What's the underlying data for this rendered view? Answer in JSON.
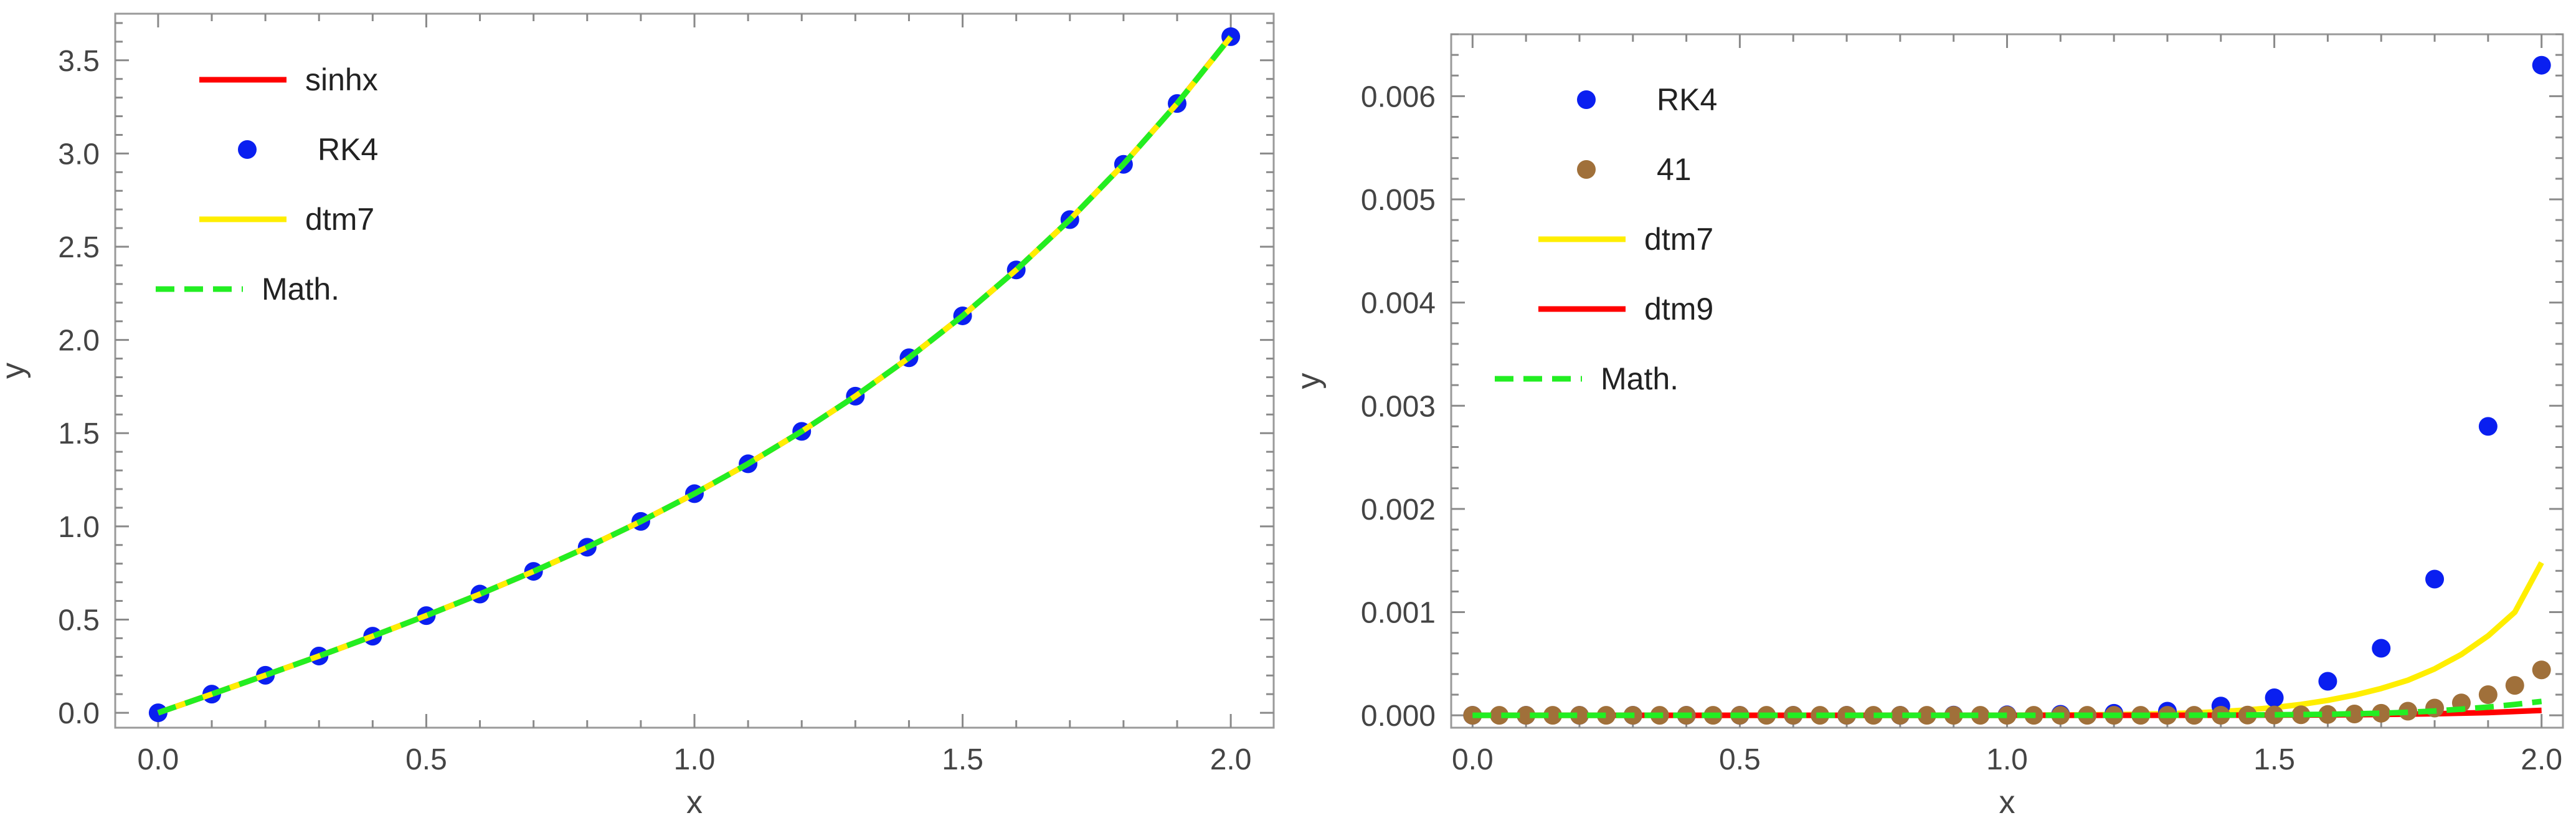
{
  "chart_data": [
    {
      "type": "line",
      "xlabel": "x",
      "ylabel": "y",
      "xlim": [
        -0.08,
        2.08
      ],
      "ylim": [
        -0.08,
        3.75
      ],
      "xticks": [
        "0.0",
        "0.5",
        "1.0",
        "1.5",
        "2.0"
      ],
      "xtick_values": [
        0,
        0.5,
        1,
        1.5,
        2
      ],
      "yticks": [
        "0.0",
        "0.5",
        "1.0",
        "1.5",
        "2.0",
        "2.5",
        "3.0",
        "3.5"
      ],
      "ytick_values": [
        0,
        0.5,
        1,
        1.5,
        2,
        2.5,
        3,
        3.5
      ],
      "grid": false,
      "legend_position": "top-left",
      "series": [
        {
          "name": "sinhx",
          "style": "line",
          "color": "#ff0000",
          "x": [
            0,
            0.1,
            0.2,
            0.3,
            0.4,
            0.5,
            0.6,
            0.7,
            0.8,
            0.9,
            1.0,
            1.1,
            1.2,
            1.3,
            1.4,
            1.5,
            1.6,
            1.7,
            1.8,
            1.9,
            2.0
          ],
          "values": [
            0,
            0.1002,
            0.2013,
            0.3045,
            0.4108,
            0.5211,
            0.6367,
            0.7586,
            0.8881,
            1.0265,
            1.1752,
            1.3356,
            1.5095,
            1.6984,
            1.9043,
            2.1293,
            2.3756,
            2.6456,
            2.9422,
            3.2682,
            3.6269
          ]
        },
        {
          "name": "RK4",
          "style": "points",
          "color": "#0a1ff0",
          "x": [
            0,
            0.1,
            0.2,
            0.3,
            0.4,
            0.5,
            0.6,
            0.7,
            0.8,
            0.9,
            1.0,
            1.1,
            1.2,
            1.3,
            1.4,
            1.5,
            1.6,
            1.7,
            1.8,
            1.9,
            2.0
          ],
          "values": [
            0,
            0.1002,
            0.2013,
            0.3045,
            0.4108,
            0.5211,
            0.6367,
            0.7586,
            0.8881,
            1.0265,
            1.1752,
            1.3356,
            1.5095,
            1.6984,
            1.9043,
            2.1293,
            2.3756,
            2.6456,
            2.9422,
            3.2682,
            3.6269
          ]
        },
        {
          "name": "dtm7",
          "style": "line",
          "color": "#ffee00",
          "x": [
            0,
            0.1,
            0.2,
            0.3,
            0.4,
            0.5,
            0.6,
            0.7,
            0.8,
            0.9,
            1.0,
            1.1,
            1.2,
            1.3,
            1.4,
            1.5,
            1.6,
            1.7,
            1.8,
            1.9,
            2.0
          ],
          "values": [
            0,
            0.1002,
            0.2013,
            0.3045,
            0.4108,
            0.5211,
            0.6367,
            0.7586,
            0.8881,
            1.0265,
            1.1752,
            1.3356,
            1.5095,
            1.6984,
            1.9043,
            2.1293,
            2.3756,
            2.6456,
            2.9422,
            3.2682,
            3.6254
          ]
        },
        {
          "name": "Math.",
          "style": "dashed",
          "color": "#22ee22",
          "x": [
            0,
            0.1,
            0.2,
            0.3,
            0.4,
            0.5,
            0.6,
            0.7,
            0.8,
            0.9,
            1.0,
            1.1,
            1.2,
            1.3,
            1.4,
            1.5,
            1.6,
            1.7,
            1.8,
            1.9,
            2.0
          ],
          "values": [
            0,
            0.1002,
            0.2013,
            0.3045,
            0.4108,
            0.5211,
            0.6367,
            0.7586,
            0.8881,
            1.0265,
            1.1752,
            1.3356,
            1.5095,
            1.6984,
            1.9043,
            2.1293,
            2.3756,
            2.6456,
            2.9422,
            3.2682,
            3.6269
          ]
        }
      ]
    },
    {
      "type": "scatter",
      "xlabel": "x",
      "ylabel": "y",
      "xlim": [
        -0.04,
        2.04
      ],
      "ylim": [
        -0.00012,
        0.0066
      ],
      "xticks": [
        "0.0",
        "0.5",
        "1.0",
        "1.5",
        "2.0"
      ],
      "xtick_values": [
        0,
        0.5,
        1,
        1.5,
        2
      ],
      "yticks": [
        "0.000",
        "0.001",
        "0.002",
        "0.003",
        "0.004",
        "0.005",
        "0.006"
      ],
      "ytick_values": [
        0,
        0.001,
        0.002,
        0.003,
        0.004,
        0.005,
        0.006
      ],
      "grid": false,
      "legend_position": "top-left",
      "series": [
        {
          "name": "RK4",
          "style": "points",
          "color": "#0a1ff0",
          "x": [
            0,
            0.1,
            0.2,
            0.3,
            0.4,
            0.5,
            0.6,
            0.7,
            0.8,
            0.9,
            1.0,
            1.1,
            1.2,
            1.3,
            1.4,
            1.5,
            1.6,
            1.7,
            1.8,
            1.9,
            2.0
          ],
          "values": [
            0,
            0,
            0,
            0,
            0,
            0,
            0,
            0,
            0,
            2e-06,
            5e-06,
            1e-05,
            2e-05,
            4e-05,
            9e-05,
            0.00017,
            0.00033,
            0.00065,
            0.00132,
            0.0028,
            0.0063
          ]
        },
        {
          "name": "41",
          "style": "points",
          "color": "#a0703a",
          "x": [
            0,
            0.05,
            0.1,
            0.15,
            0.2,
            0.25,
            0.3,
            0.35,
            0.4,
            0.45,
            0.5,
            0.55,
            0.6,
            0.65,
            0.7,
            0.75,
            0.8,
            0.85,
            0.9,
            0.95,
            1.0,
            1.05,
            1.1,
            1.15,
            1.2,
            1.25,
            1.3,
            1.35,
            1.4,
            1.45,
            1.5,
            1.55,
            1.6,
            1.65,
            1.7,
            1.75,
            1.8,
            1.85,
            1.9,
            1.95,
            2.0
          ],
          "values": [
            0,
            0,
            0,
            0,
            0,
            0,
            0,
            0,
            0,
            0,
            0,
            0,
            0,
            0,
            0,
            0,
            0,
            0,
            0,
            0,
            0,
            0,
            0,
            0,
            0,
            0,
            0,
            0,
            1e-06,
            2e-06,
            3e-06,
            5e-06,
            8e-06,
            1.3e-05,
            2e-05,
            4e-05,
            7e-05,
            0.00012,
            0.0002,
            0.00029,
            0.00044
          ]
        },
        {
          "name": "dtm7",
          "style": "line",
          "color": "#ffee00",
          "x": [
            0,
            0.1,
            0.2,
            0.3,
            0.4,
            0.5,
            0.6,
            0.7,
            0.8,
            0.9,
            1.0,
            1.1,
            1.2,
            1.3,
            1.35,
            1.4,
            1.45,
            1.5,
            1.55,
            1.6,
            1.65,
            1.7,
            1.75,
            1.8,
            1.85,
            1.9,
            1.95,
            2.0
          ],
          "values": [
            0,
            0,
            0,
            0,
            0,
            0,
            0,
            0,
            0,
            0,
            1e-06,
            3e-06,
            7e-06,
            1.5e-05,
            2.4e-05,
            3.6e-05,
            5.2e-05,
            7.5e-05,
            0.000105,
            0.000145,
            0.000196,
            0.00026,
            0.00034,
            0.00045,
            0.00059,
            0.00077,
            0.001,
            0.00148
          ]
        },
        {
          "name": "dtm9",
          "style": "line",
          "color": "#ff0000",
          "x": [
            0,
            0.2,
            0.4,
            0.6,
            0.8,
            1.0,
            1.2,
            1.4,
            1.5,
            1.6,
            1.7,
            1.8,
            1.9,
            2.0
          ],
          "values": [
            0,
            0,
            0,
            0,
            0,
            0,
            0,
            1e-06,
            2e-06,
            4e-06,
            8e-06,
            1.5e-05,
            2.7e-05,
            4.8e-05
          ]
        },
        {
          "name": "Math.",
          "style": "dashed",
          "color": "#22ee22",
          "x": [
            0,
            0.1,
            0.2,
            0.3,
            0.4,
            0.5,
            0.6,
            0.7,
            0.8,
            0.9,
            1.0,
            1.1,
            1.2,
            1.3,
            1.4,
            1.5,
            1.6,
            1.7,
            1.75,
            1.8,
            1.85,
            1.9,
            1.95,
            2.0
          ],
          "values": [
            0,
            0,
            0,
            0,
            0,
            0,
            0,
            0,
            0,
            0,
            0,
            0,
            0,
            0,
            2e-06,
            5e-06,
            1e-05,
            2e-05,
            3e-05,
            4.2e-05,
            6e-05,
            8e-05,
            0.000105,
            0.000135
          ]
        }
      ]
    }
  ]
}
